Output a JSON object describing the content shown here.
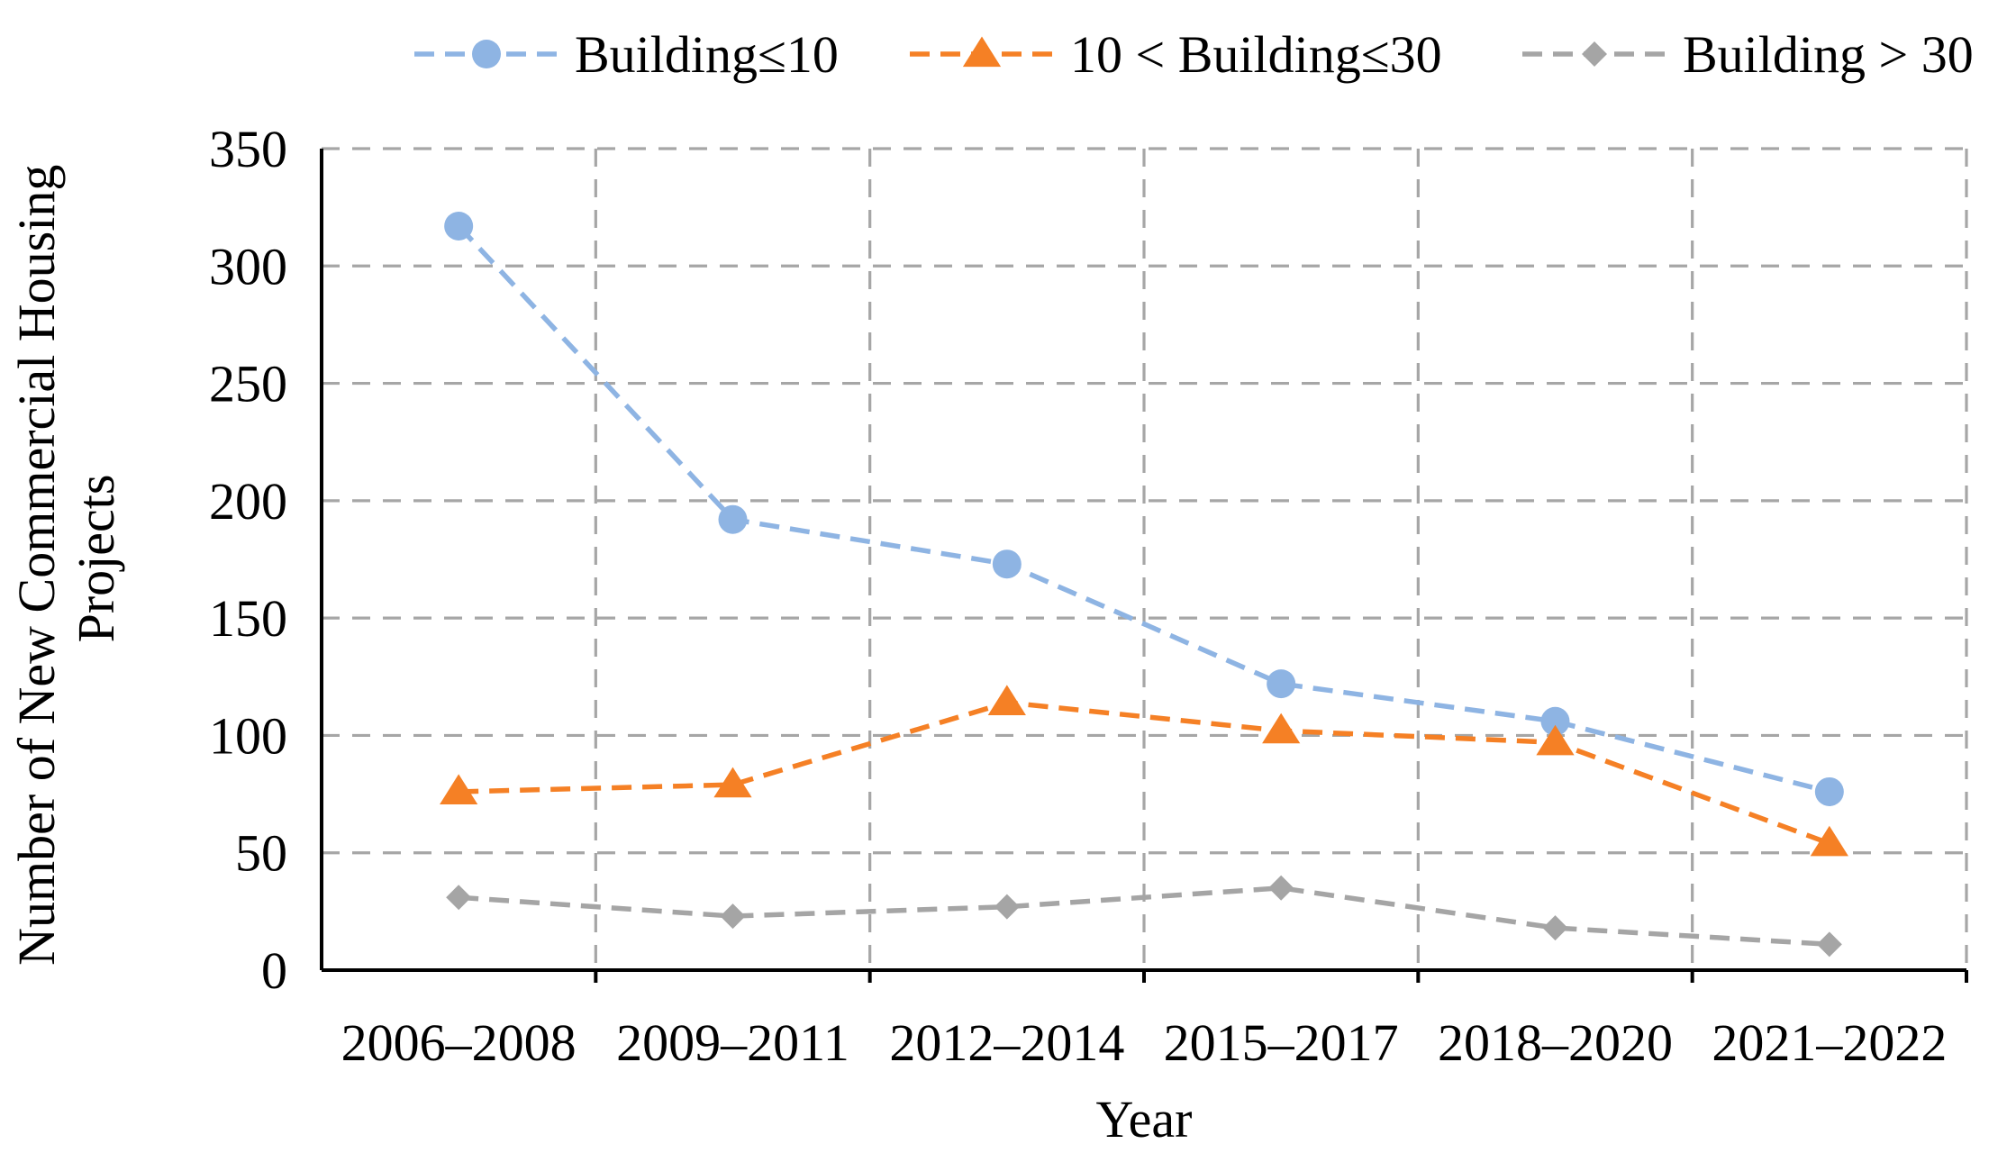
{
  "chart_data": {
    "type": "line",
    "title": "",
    "xlabel": "Year",
    "ylabel": "Number of New Commercial Housing Projects",
    "categories": [
      "2006–2008",
      "2009–2011",
      "2012–2014",
      "2015–2017",
      "2018–2020",
      "2021–2022"
    ],
    "ylim": [
      0,
      350
    ],
    "yticks": [
      "0",
      "50",
      "100",
      "150",
      "200",
      "250",
      "300",
      "350"
    ],
    "ytick_values": [
      0,
      50,
      100,
      150,
      200,
      250,
      300,
      350
    ],
    "grid": true,
    "legend_position": "top",
    "series": [
      {
        "name": "Building≤10",
        "marker": "circle",
        "color": "#8eb4e3",
        "line_style": "dashed",
        "values": [
          317,
          192,
          173,
          122,
          106,
          76
        ]
      },
      {
        "name": "10 < Building≤30",
        "marker": "triangle",
        "color": "#f58025",
        "line_style": "dashed",
        "values": [
          76,
          79,
          114,
          102,
          97,
          54
        ]
      },
      {
        "name": "Building > 30",
        "marker": "diamond",
        "color": "#a5a5a5",
        "line_style": "dashed",
        "values": [
          31,
          23,
          27,
          35,
          18,
          11
        ]
      }
    ]
  }
}
